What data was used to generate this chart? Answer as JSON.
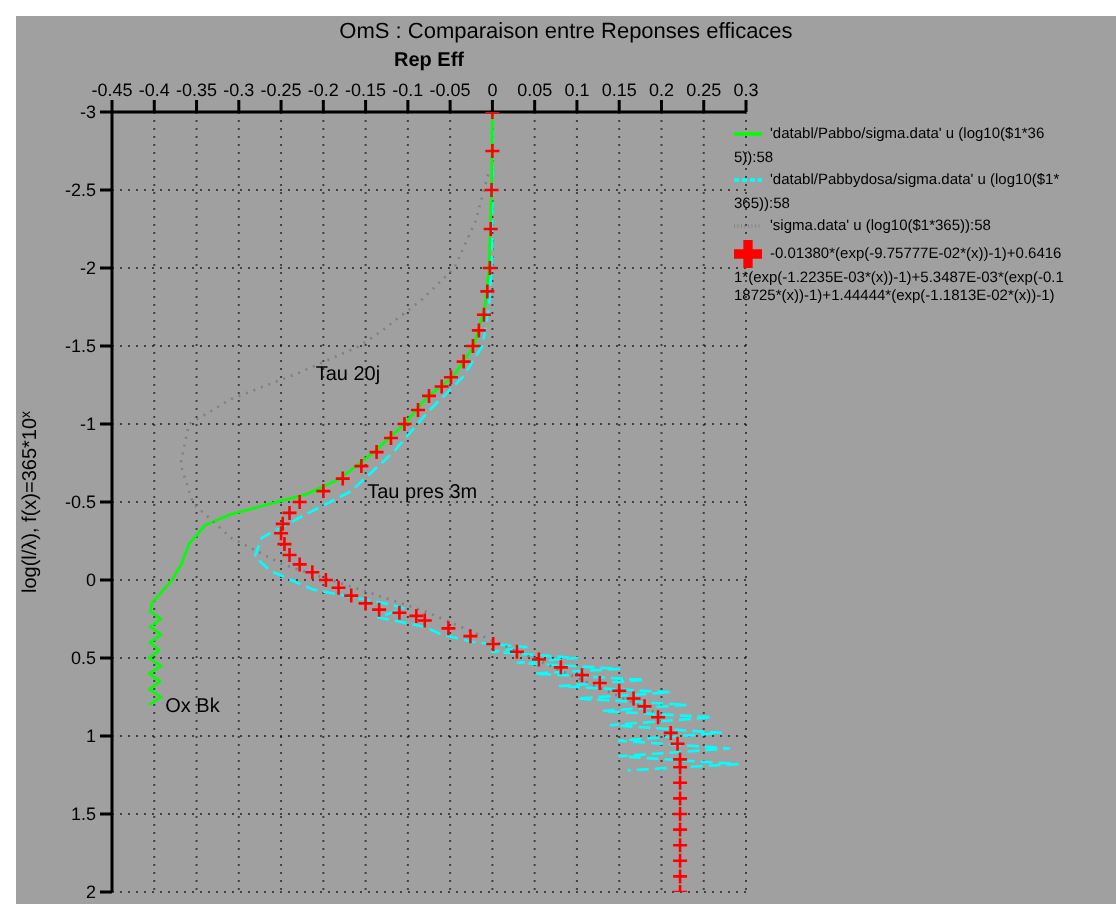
{
  "chart_data": {
    "type": "line",
    "orientation": "horizontal",
    "title": "OmS : Comparaison entre Reponses efficaces",
    "xlabel": "Rep Eff",
    "ylabel": "log(l/λ), f(x)=365*10$^{x}$",
    "xlim": [
      -0.45,
      0.3
    ],
    "xticks": [
      -0.45,
      -0.4,
      -0.35,
      -0.3,
      -0.25,
      -0.2,
      -0.15,
      -0.1,
      -0.05,
      0,
      0.05,
      0.1,
      0.15,
      0.2,
      0.25,
      0.3
    ],
    "ylim": [
      2,
      -3
    ],
    "yticks": [
      -3,
      -2.5,
      -2,
      -1.5,
      -1,
      -0.5,
      0,
      0.5,
      1,
      1.5,
      2
    ],
    "grid": true,
    "legend": "top right",
    "series": [
      {
        "name": "-0.01380*(exp(-9.75777E-02*(x))-1)+0.64161*(exp(-1.2235E-03*(x))-1)+5.3487E-03*(exp(-0.118725*(x))-1)+1.44444*(exp(-1.1813E-02*(x))-1)",
        "type": "scatter",
        "color": "#ff0000",
        "marker": "cross",
        "x": [
          -3,
          -2.75,
          -2.5,
          -2.25,
          -2,
          -1.85,
          -1.7,
          -1.6,
          -1.5,
          -1.4,
          -1.3,
          -1.24,
          -1.18,
          -1.09,
          -1,
          -0.91,
          -0.82,
          -0.73,
          -0.65,
          -0.57,
          -0.5,
          -0.43,
          -0.36,
          -0.3,
          -0.23,
          -0.16,
          -0.1,
          -0.05,
          0,
          0.05,
          0.1,
          0.15,
          0.19,
          0.21,
          0.23,
          0.26,
          0.31,
          0.36,
          0.41,
          0.46,
          0.51,
          0.56,
          0.61,
          0.66,
          0.71,
          0.76,
          0.81,
          0.88,
          0.98,
          1.05,
          1.15,
          1.2,
          1.3,
          1.4,
          1.5,
          1.6,
          1.7,
          1.8,
          1.9,
          2
        ],
        "values": [
          0,
          0,
          -0.001,
          -0.002,
          -0.003,
          -0.006,
          -0.01,
          -0.016,
          -0.023,
          -0.034,
          -0.049,
          -0.06,
          -0.075,
          -0.088,
          -0.104,
          -0.12,
          -0.137,
          -0.155,
          -0.177,
          -0.2,
          -0.228,
          -0.24,
          -0.248,
          -0.25,
          -0.246,
          -0.24,
          -0.228,
          -0.213,
          -0.197,
          -0.182,
          -0.167,
          -0.15,
          -0.134,
          -0.11,
          -0.09,
          -0.08,
          -0.052,
          -0.026,
          0.001,
          0.029,
          0.055,
          0.081,
          0.106,
          0.127,
          0.15,
          0.167,
          0.18,
          0.196,
          0.211,
          0.219,
          0.222,
          0.222,
          0.222,
          0.222,
          0.222,
          0.222,
          0.222,
          0.222,
          0.222,
          0.222
        ]
      },
      {
        "name": "'databl/Pabbydosa/sigma.data' u (log10($1*365)):58",
        "color": "#00ffff",
        "marker": "none",
        "line_style": "dashed",
        "x": [
          -3,
          -2.5,
          -2,
          -1.75,
          -1.5,
          -1.3,
          -1.08,
          -0.82,
          -0.57,
          -0.4,
          -0.27,
          -0.15,
          -0.06,
          0.06,
          0.15,
          0.18,
          0.24,
          0.3,
          0.35,
          0.4,
          0.43,
          0.46,
          0.5,
          0.53,
          0.57,
          0.6,
          0.64,
          0.68,
          0.72,
          0.76,
          0.8,
          0.84,
          0.88,
          0.93,
          0.98,
          1.03,
          1.08,
          1.13,
          1.18,
          1.22
        ],
        "values": [
          0,
          0,
          -0.001,
          -0.004,
          -0.012,
          -0.035,
          -0.076,
          -0.117,
          -0.167,
          -0.228,
          -0.273,
          -0.281,
          -0.263,
          -0.213,
          -0.127,
          -0.105,
          -0.135,
          -0.08,
          -0.06,
          -0.02,
          0.04,
          0,
          0.1,
          0.03,
          0.15,
          0.05,
          0.18,
          0.08,
          0.21,
          0.1,
          0.23,
          0.13,
          0.26,
          0.14,
          0.27,
          0.15,
          0.28,
          0.15,
          0.29,
          0.16
        ]
      },
      {
        "name": "'databl/Pabbo/sigma.data' u (log10($1*365)):58",
        "color": "#00ff00",
        "marker": "none",
        "line_style": "solid",
        "x": [
          -3,
          -2.5,
          -2,
          -1.75,
          -1.5,
          -1.3,
          -1.18,
          -1,
          -0.82,
          -0.65,
          -0.55,
          -0.5,
          -0.42,
          -0.35,
          -0.23,
          -0.1,
          0,
          0.1,
          0.14,
          0.2,
          0.25,
          0.3,
          0.35,
          0.4,
          0.45,
          0.5,
          0.55,
          0.6,
          0.65,
          0.7,
          0.75,
          0.8
        ],
        "values": [
          0,
          -0.001,
          -0.004,
          -0.009,
          -0.022,
          -0.047,
          -0.076,
          -0.104,
          -0.14,
          -0.18,
          -0.22,
          -0.255,
          -0.31,
          -0.34,
          -0.359,
          -0.368,
          -0.379,
          -0.395,
          -0.402,
          -0.405,
          -0.392,
          -0.405,
          -0.392,
          -0.405,
          -0.394,
          -0.406,
          -0.392,
          -0.406,
          -0.393,
          -0.406,
          -0.392,
          -0.406
        ]
      },
      {
        "name": "'sigma.data' u (log10($1*365)):58",
        "color": "#808080",
        "marker": "none",
        "line_style": "dotted",
        "x": [
          -2.6,
          -2.3,
          -2,
          -1.8,
          -1.6,
          -1.5,
          -1.33,
          -1.16,
          -1,
          -0.74,
          -0.49,
          -0.27,
          -0.1,
          0.06,
          0.2,
          0.47,
          0.85
        ],
        "values": [
          -0.005,
          -0.02,
          -0.045,
          -0.083,
          -0.13,
          -0.157,
          -0.228,
          -0.309,
          -0.359,
          -0.369,
          -0.354,
          -0.309,
          -0.248,
          -0.157,
          -0.08,
          0.035,
          0.193
        ]
      }
    ],
    "annotations": [
      {
        "text": "Tau 20j",
        "x": -0.228,
        "y": -1.33
      },
      {
        "text": "Tau pres 3m",
        "x": -0.167,
        "y": -0.57
      },
      {
        "text": "Ox Bk",
        "x": -0.406,
        "y": 0.8
      }
    ]
  }
}
